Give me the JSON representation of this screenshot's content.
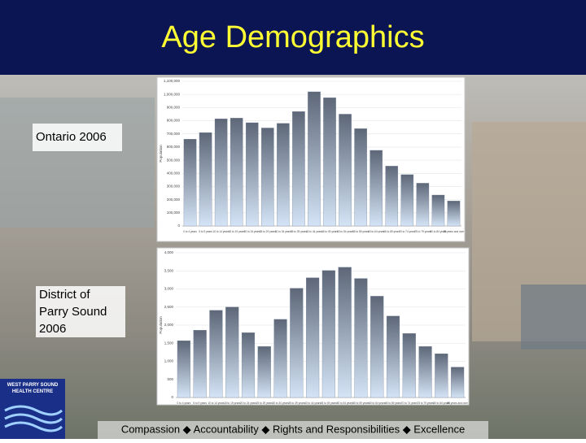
{
  "slide": {
    "title": "Age Demographics",
    "label_top": "Ontario 2006",
    "label_bottom": "District of Parry Sound 2006",
    "footer": "Compassion ◆ Accountability ◆ Rights and Responsibilities ◆ Excellence",
    "logo": "WEST PARRY SOUND HEALTH CENTRE"
  },
  "chart_data": [
    {
      "type": "bar",
      "y_label": "Population",
      "color": "#6f7f95",
      "categories": [
        "0 to 4 years",
        "5 to 9 years",
        "10 to 14 years",
        "15 to 19 years",
        "20 to 24 years",
        "25 to 29 years",
        "30 to 34 years",
        "35 to 39 years",
        "40 to 44 years",
        "45 to 49 years",
        "50 to 54 years",
        "55 to 59 years",
        "60 to 64 years",
        "65 to 69 years",
        "70 to 74 years",
        "75 to 79 years",
        "80 to 84 years",
        "85 years and over"
      ],
      "values": [
        660000,
        710000,
        815000,
        820000,
        785000,
        745000,
        780000,
        870000,
        1020000,
        975000,
        850000,
        740000,
        575000,
        455000,
        390000,
        325000,
        235000,
        190000
      ],
      "ylim": [
        0,
        1100000
      ],
      "yticks": [
        0,
        {
          "value": 100000,
          "label": "100,000"
        },
        {
          "value": 200000,
          "label": "200,000"
        },
        {
          "value": 300000,
          "label": "300,000"
        },
        {
          "value": 400000,
          "label": "400,000"
        },
        {
          "value": 500000,
          "label": "500,000"
        },
        {
          "value": 600000,
          "label": "600,000"
        },
        {
          "value": 700000,
          "label": "700,000"
        },
        {
          "value": 800000,
          "label": "800,000"
        },
        {
          "value": 900000,
          "label": "900,000"
        },
        {
          "value": 1000000,
          "label": "1,000,000"
        },
        {
          "value": 1100000,
          "label": "1,100,000"
        }
      ],
      "grid": true
    },
    {
      "type": "bar",
      "y_label": "Population",
      "color": "#6f7f95",
      "categories": [
        "0 to 4 years",
        "5 to 9 years",
        "10 to 14 years",
        "15 to 19 years",
        "20 to 24 years",
        "25 to 29 years",
        "30 to 34 years",
        "35 to 39 years",
        "40 to 44 years",
        "45 to 49 years",
        "50 to 54 years",
        "55 to 59 years",
        "60 to 64 years",
        "65 to 69 years",
        "70 to 74 years",
        "75 to 79 years",
        "80 to 84 years",
        "85 years and over"
      ],
      "values": [
        1570,
        1860,
        2410,
        2500,
        1790,
        1410,
        2160,
        3020,
        3310,
        3510,
        3600,
        3290,
        2800,
        2250,
        1770,
        1410,
        1210,
        840
      ],
      "ylim": [
        0,
        4000
      ],
      "yticks": [
        0,
        500,
        {
          "value": 1000,
          "label": "1,000"
        },
        {
          "value": 1500,
          "label": "1,500"
        },
        {
          "value": 2000,
          "label": "2,000"
        },
        {
          "value": 2500,
          "label": "2,500"
        },
        {
          "value": 3000,
          "label": "3,000"
        },
        {
          "value": 3500,
          "label": "3,500"
        },
        {
          "value": 4000,
          "label": "4,000"
        }
      ],
      "grid": true
    }
  ]
}
